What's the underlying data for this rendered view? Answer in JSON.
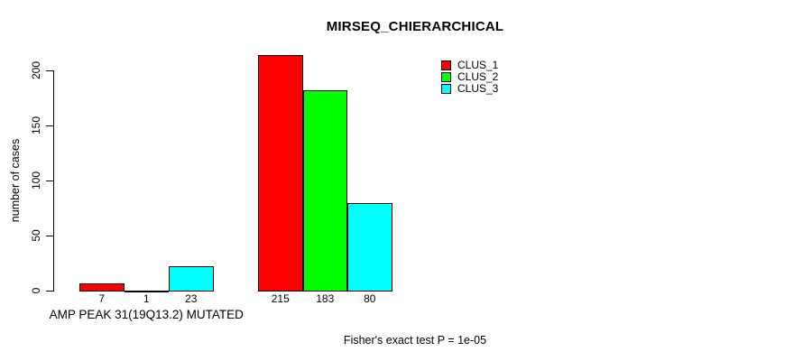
{
  "title": "MIRSEQ_CHIERARCHICAL",
  "y_axis": {
    "label": "number of cases",
    "ticks": [
      0,
      50,
      100,
      150,
      200
    ]
  },
  "legend": {
    "items": [
      {
        "label": "CLUS_1",
        "color": "#ff0000"
      },
      {
        "label": "CLUS_2",
        "color": "#00ff00"
      },
      {
        "label": "CLUS_3",
        "color": "#00ffff"
      }
    ]
  },
  "footer": "Fisher's exact test P = 1e-05",
  "chart_data": {
    "type": "bar",
    "title": "MIRSEQ_CHIERARCHICAL",
    "xlabel": "",
    "ylabel": "number of cases",
    "ylim": [
      0,
      215
    ],
    "yticks": [
      0,
      50,
      100,
      150,
      200
    ],
    "grid": false,
    "legend_position": "top-right-inside",
    "categories": [
      "AMP PEAK 31(19Q13.2) MUTATED",
      ""
    ],
    "series": [
      {
        "name": "CLUS_1",
        "color": "#ff0000",
        "values": [
          7,
          215
        ]
      },
      {
        "name": "CLUS_2",
        "color": "#00ff00",
        "values": [
          1,
          183
        ]
      },
      {
        "name": "CLUS_3",
        "color": "#00ffff",
        "values": [
          23,
          80
        ]
      }
    ],
    "bar_value_labels": [
      [
        7,
        1,
        23
      ],
      [
        215,
        183,
        80
      ]
    ],
    "annotation": "Fisher's exact test P = 1e-05"
  }
}
